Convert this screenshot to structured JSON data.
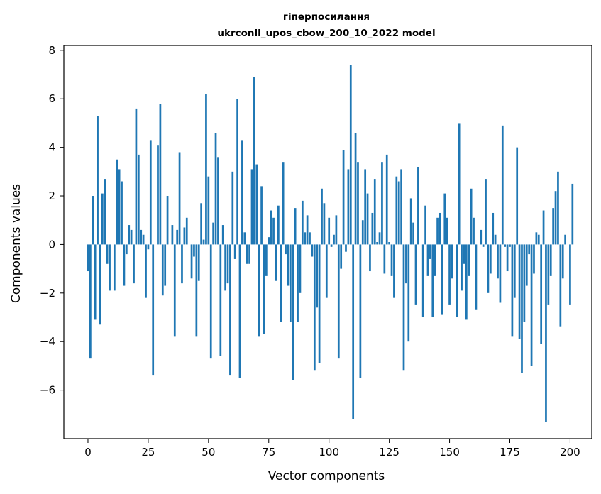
{
  "chart_data": {
    "type": "bar",
    "title_line1": "гіперпосилання",
    "title_line2": "ukrconll_upos_cbow_200_10_2022 model",
    "xlabel": "Vector components",
    "ylabel": "Components values",
    "xlim": [
      -10,
      209
    ],
    "ylim": [
      -8.0,
      8.2
    ],
    "xticks": [
      0,
      25,
      50,
      75,
      100,
      125,
      150,
      175,
      200
    ],
    "yticks": [
      -6,
      -4,
      -2,
      0,
      2,
      4,
      6,
      8
    ],
    "ytick_labels": [
      "−6",
      "−4",
      "−2",
      "0",
      "2",
      "4",
      "6",
      "8"
    ],
    "bar_color": "#1f77b4",
    "grid": false,
    "values": [
      -1.1,
      -4.7,
      2.0,
      -3.1,
      5.3,
      -3.3,
      2.1,
      2.7,
      -0.8,
      -1.9,
      0.0,
      -1.9,
      3.5,
      3.1,
      2.6,
      -1.7,
      -0.4,
      0.8,
      0.6,
      -1.6,
      5.6,
      3.7,
      0.6,
      0.4,
      -2.2,
      -0.2,
      4.3,
      -5.4,
      0.0,
      4.1,
      5.8,
      -2.1,
      -1.7,
      2.0,
      0.0,
      0.8,
      -3.8,
      0.6,
      3.8,
      -1.6,
      0.7,
      1.1,
      0.0,
      -1.4,
      -0.5,
      -3.8,
      -1.5,
      1.7,
      0.2,
      6.2,
      2.8,
      -4.7,
      0.9,
      4.6,
      3.6,
      -4.6,
      0.8,
      -1.9,
      -1.6,
      -5.4,
      3.0,
      -0.6,
      6.0,
      -5.5,
      4.3,
      0.5,
      -0.8,
      -0.8,
      3.1,
      6.9,
      3.3,
      -3.8,
      2.4,
      -3.7,
      -1.3,
      0.3,
      1.4,
      1.1,
      -1.5,
      1.6,
      -3.2,
      3.4,
      -0.4,
      -1.7,
      -3.2,
      -5.6,
      1.5,
      -3.2,
      -2.0,
      1.8,
      0.5,
      1.2,
      0.5,
      -0.5,
      -5.2,
      -2.6,
      -4.9,
      2.3,
      1.7,
      -2.2,
      1.1,
      -0.1,
      0.4,
      1.2,
      -4.7,
      -1.0,
      3.9,
      -0.3,
      3.1,
      7.4,
      -7.2,
      4.6,
      3.4,
      -5.5,
      1.0,
      3.1,
      2.1,
      -1.1,
      1.3,
      2.7,
      0.1,
      0.5,
      3.4,
      -1.2,
      3.7,
      0.1,
      -1.3,
      -2.2,
      2.8,
      2.6,
      3.1,
      -5.2,
      -1.6,
      -4.0,
      1.9,
      0.9,
      -2.5,
      3.2,
      0.0,
      -3.0,
      1.6,
      -1.3,
      -0.6,
      -3.0,
      -1.3,
      1.1,
      1.3,
      -2.9,
      2.1,
      1.1,
      -2.5,
      -1.4,
      0.0,
      -3.0,
      5.0,
      -1.9,
      -0.8,
      -3.1,
      -1.3,
      2.3,
      1.1,
      -2.7,
      0.0,
      0.6,
      -0.1,
      2.7,
      -2.0,
      -1.2,
      1.3,
      0.4,
      -1.4,
      -2.4,
      4.9,
      -0.1,
      -1.1,
      -0.1,
      -3.8,
      -2.2,
      4.0,
      -3.9,
      -5.3,
      -3.2,
      -1.7,
      -0.4,
      -5.0,
      -1.2,
      0.5,
      0.4,
      -4.1,
      1.4,
      -7.3,
      -2.5,
      -1.3,
      1.5,
      2.2,
      3.0,
      -3.4,
      -1.4,
      0.4,
      0.0,
      -2.5,
      2.5
    ]
  }
}
